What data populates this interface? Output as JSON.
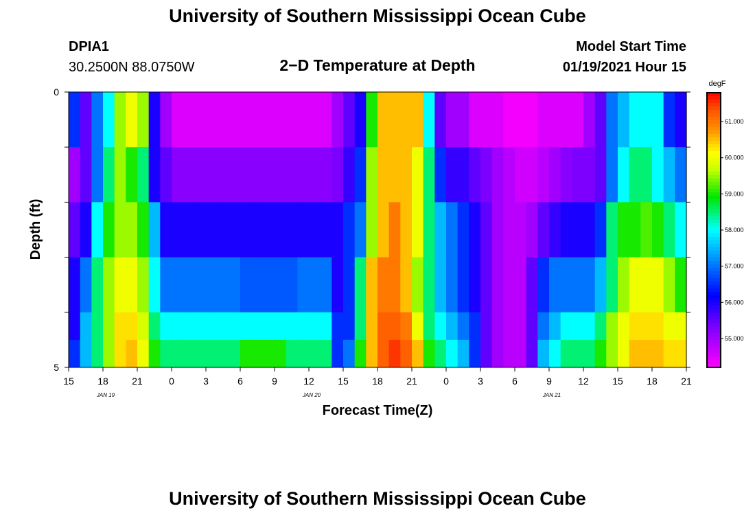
{
  "title": "University of Southern Mississippi Ocean Cube",
  "footer_title": "University of Southern Mississippi Ocean Cube",
  "station": {
    "id": "DPIA1",
    "coords": "30.2500N 88.0750W"
  },
  "model": {
    "label": "Model Start Time",
    "start": "01/19/2021 Hour 15"
  },
  "chart_data": {
    "type": "heatmap",
    "title": "2−D Temperature at Depth",
    "xlabel": "Forecast Time(Z)",
    "ylabel": "Depth (ft)",
    "x_ticks": [
      "15",
      "18",
      "21",
      "0",
      "3",
      "6",
      "9",
      "12",
      "15",
      "18",
      "21",
      "0",
      "3",
      "6",
      "9",
      "12",
      "15",
      "18",
      "21"
    ],
    "date_labels": [
      {
        "label": "JAN 19",
        "tick_index": 1
      },
      {
        "label": "JAN 20",
        "tick_index": 7
      },
      {
        "label": "JAN 21",
        "tick_index": 14
      }
    ],
    "y_ticks": [
      "0",
      "5"
    ],
    "ylim": [
      0,
      5
    ],
    "x_range_hours": [
      0,
      54
    ],
    "depth_rows": [
      0,
      1,
      2,
      3,
      4,
      4.5
    ],
    "colorbar": {
      "unit": "degF",
      "ticks": [
        "55.000",
        "56.000",
        "57.000",
        "58.000",
        "59.000",
        "60.000",
        "61.000"
      ],
      "range": [
        54.2,
        61.8
      ]
    },
    "rows": [
      [
        56.5,
        55.5,
        57,
        58,
        59.5,
        60,
        59.5,
        56,
        55,
        54.5,
        54.5,
        54.5,
        54.5,
        54.5,
        54.5,
        54.5,
        54.5,
        54.5,
        54.5,
        54.5,
        54.5,
        54.5,
        54.5,
        55,
        55.5,
        56,
        59,
        60.5,
        60.5,
        60.5,
        60.5,
        58,
        55.5,
        55,
        55,
        54.5,
        54.5,
        54.5,
        54.3,
        54.3,
        54.3,
        54.5,
        54.5,
        54.5,
        54.5,
        55,
        55.5,
        57,
        57.5,
        58,
        58,
        58,
        56.5,
        56
      ],
      [
        55,
        55.5,
        57,
        58.5,
        59.5,
        59,
        58.5,
        56,
        55.5,
        55.2,
        55.2,
        55.2,
        55.2,
        55.2,
        55.2,
        55.2,
        55.2,
        55.2,
        55.2,
        55.2,
        55.2,
        55.2,
        55.2,
        55.3,
        55.8,
        56.5,
        59.5,
        60.5,
        60.5,
        60.5,
        60,
        58.5,
        56.5,
        55.8,
        55.8,
        55.5,
        55.3,
        55,
        54.8,
        54.6,
        54.6,
        54.8,
        55,
        55.2,
        55.3,
        55.3,
        55.5,
        57,
        58,
        58.5,
        58.5,
        58,
        57.5,
        57
      ],
      [
        55.5,
        56,
        58,
        59,
        59.5,
        59.5,
        59,
        57.5,
        56,
        56,
        56,
        56,
        56,
        56,
        56,
        56,
        56,
        56,
        56,
        56,
        56,
        56,
        56,
        56,
        56.5,
        57,
        59.5,
        60.5,
        61,
        60.5,
        60,
        58.5,
        57.5,
        57,
        56.5,
        56,
        55.5,
        55,
        54.8,
        54.8,
        55,
        55.5,
        55.8,
        56,
        56,
        56,
        56.5,
        58.5,
        59,
        59,
        59.2,
        59,
        58.5,
        58
      ],
      [
        56,
        57,
        58.5,
        59.5,
        60,
        60,
        59.5,
        58,
        57,
        57,
        57,
        57,
        57,
        57,
        57,
        56.8,
        56.8,
        56.8,
        56.8,
        56.8,
        57,
        57,
        57,
        56,
        56.5,
        58.5,
        60.5,
        61,
        61,
        60.5,
        59.5,
        58.5,
        57.5,
        57,
        56.5,
        56,
        55.5,
        55,
        54.8,
        54.8,
        55.5,
        56.5,
        57,
        57,
        57,
        57,
        57.5,
        58.5,
        59.5,
        60,
        60,
        60,
        59.5,
        59
      ],
      [
        56,
        57.5,
        58.5,
        59.5,
        60.3,
        60.3,
        59.8,
        58.5,
        58,
        58,
        58,
        58,
        58,
        58,
        58,
        58,
        58,
        58,
        58,
        58,
        58,
        58,
        58,
        56.5,
        56.5,
        58.5,
        60.5,
        61.2,
        61.2,
        61,
        60,
        58.5,
        58,
        57.5,
        57,
        56.5,
        55.5,
        55,
        54.8,
        54.8,
        55.5,
        57,
        57.5,
        58,
        58,
        58,
        58.5,
        59.5,
        60,
        60.3,
        60.3,
        60.3,
        60,
        60
      ],
      [
        56.5,
        57.5,
        58.5,
        59.5,
        60.3,
        60.5,
        60,
        59,
        58.5,
        58.5,
        58.5,
        58.5,
        58.5,
        58.5,
        58.5,
        59,
        59,
        59,
        59,
        58.5,
        58.5,
        58.5,
        58.5,
        56.5,
        57,
        59,
        60.5,
        61.2,
        61.5,
        61.2,
        60.5,
        59,
        58.5,
        58,
        57.5,
        56.5,
        55.5,
        55,
        54.8,
        54.8,
        55.5,
        57.5,
        58,
        58.5,
        58.5,
        58.5,
        59,
        59.5,
        60,
        60.5,
        60.5,
        60.5,
        60.3,
        60.3
      ]
    ]
  }
}
